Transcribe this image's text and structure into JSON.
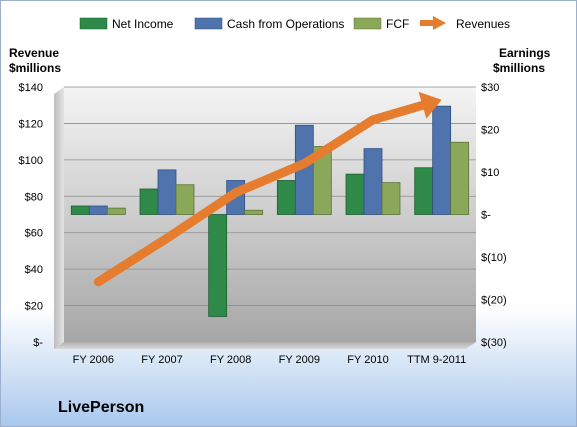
{
  "chart_data": {
    "type": "bar",
    "categories": [
      "FY 2006",
      "FY 2007",
      "FY 2008",
      "FY 2009",
      "FY 2010",
      "TTM 9-2011"
    ],
    "series": [
      {
        "name": "Net Income",
        "axis": "right",
        "color": "#2f8a4a",
        "values": [
          2,
          6,
          -24,
          8,
          9.5,
          11
        ]
      },
      {
        "name": "Cash from Operations",
        "axis": "right",
        "color": "#4f74ad",
        "values": [
          2,
          10.5,
          8,
          21,
          15.5,
          25.5
        ]
      },
      {
        "name": "FCF",
        "axis": "right",
        "color": "#8aa75a",
        "values": [
          1.5,
          7,
          1,
          16,
          7.5,
          17
        ]
      }
    ],
    "line_series": {
      "name": "Revenues",
      "axis": "left",
      "color": "#e67c2d",
      "values": [
        33,
        57,
        82,
        98,
        122,
        133
      ]
    },
    "left_axis": {
      "label_line1": "Revenue",
      "label_line2": "$millions",
      "ylim": [
        0,
        140
      ],
      "ticks": [
        "$140",
        "$120",
        "$100",
        "$80",
        "$60",
        "$40",
        "$20",
        "$-"
      ]
    },
    "right_axis": {
      "label_line1": "Earnings",
      "label_line2": "$millions",
      "ylim": [
        -30,
        30
      ],
      "ticks": [
        "$30",
        "$20",
        "$10",
        "$-",
        "$(10)",
        "$(20)",
        "$(30)"
      ]
    },
    "legend_position": "top",
    "grid": true
  },
  "brand": "LivePerson"
}
